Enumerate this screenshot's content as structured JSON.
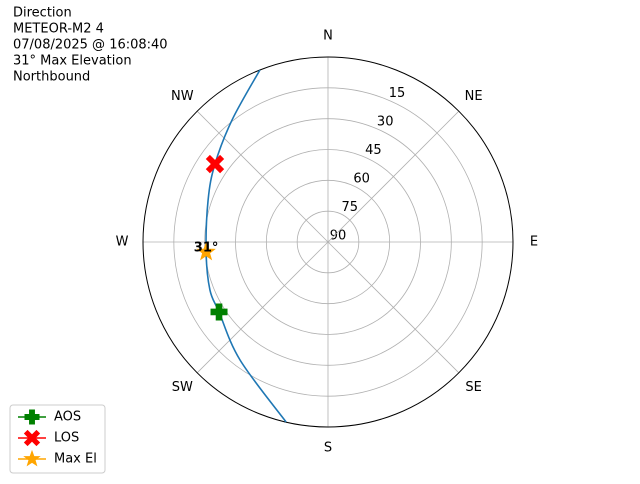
{
  "chart_data": {
    "type": "polar",
    "title_lines": [
      "Direction",
      "METEOR-M2 4",
      "07/08/2025 @ 16:08:40",
      "31° Max Elevation",
      "Northbound"
    ],
    "rlim": [
      90,
      0
    ],
    "rticks": [
      15,
      30,
      45,
      60,
      75,
      90
    ],
    "thetaticks": [
      {
        "value": 0,
        "label": "N"
      },
      {
        "value": 45,
        "label": "NE"
      },
      {
        "value": 90,
        "label": "E"
      },
      {
        "value": 135,
        "label": "SE"
      },
      {
        "value": 180,
        "label": "S"
      },
      {
        "value": 225,
        "label": "SW"
      },
      {
        "value": 270,
        "label": "W"
      },
      {
        "value": 315,
        "label": "NW"
      }
    ],
    "grid": true,
    "track": {
      "color": "#1f77b4",
      "azimuth": [
        338.4,
        321.8,
        304.6,
        289.3,
        265.3,
        247.9,
        237.3,
        216.7,
        193.1
      ],
      "elevation": [
        0,
        14.5,
        23.2,
        28.2,
        30.5,
        28.0,
        27.0,
        18.4,
        0.1
      ]
    },
    "series": [
      {
        "name": "AOS",
        "color": "green",
        "marker": "plus",
        "azimuth": 237.3,
        "elevation": 27.0
      },
      {
        "name": "LOS",
        "color": "red",
        "marker": "x",
        "azimuth": 304.6,
        "elevation": 23.2
      },
      {
        "name": "Max El",
        "color": "orange",
        "marker": "star",
        "azimuth": 265.3,
        "elevation": 30.5
      }
    ],
    "annotation": {
      "text": "31°",
      "azimuth": 265.3,
      "elevation": 30.5
    },
    "legend": "lower-left"
  }
}
